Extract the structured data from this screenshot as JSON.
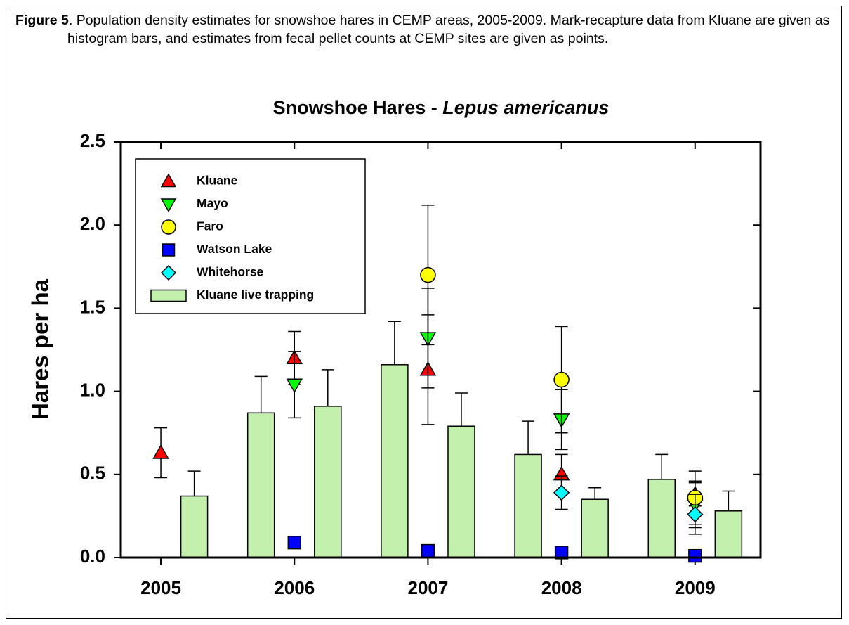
{
  "caption": {
    "label": "Figure 5",
    "text": ".  Population density estimates for snowshoe hares in CEMP areas, 2005-2009. Mark-recapture data from Kluane are given as histogram bars, and estimates from fecal pellet counts at CEMP sites are given as points."
  },
  "chart_data": {
    "type": "bar",
    "title": [
      "Snowshoe Hares - ",
      "Lepus americanus"
    ],
    "y_label": "Hares per ha",
    "xlim": [
      2004.7,
      2009.49
    ],
    "xticks": [
      2005,
      2006,
      2007,
      2008,
      2009
    ],
    "ylim": [
      0,
      2.5
    ],
    "yticks": [
      {
        "value": 0,
        "label": "0.0"
      },
      0.5,
      {
        "value": 1,
        "label": "1.0"
      },
      1.5,
      {
        "value": 2,
        "label": "2.0"
      },
      2.5
    ],
    "legend": "top-left",
    "series": [
      {
        "name": "Kluane",
        "type": "scatter",
        "marker": "triangle-up",
        "color": "#ff0000",
        "x": [
          2005,
          2006,
          2007,
          2008,
          2009
        ],
        "values": [
          0.63,
          1.2,
          1.13,
          0.5,
          0.38
        ],
        "errors": [
          0.15,
          0.16,
          0.33,
          0.12,
          0.07
        ]
      },
      {
        "name": "Mayo",
        "type": "scatter",
        "marker": "triangle-down",
        "color": "#00ff00",
        "x": [
          2006,
          2007,
          2008,
          2009
        ],
        "values": [
          1.04,
          1.32,
          0.83,
          0.32
        ],
        "errors": [
          0.2,
          0.3,
          0.18,
          0.14
        ]
      },
      {
        "name": "Faro",
        "type": "scatter",
        "marker": "circle",
        "color": "#ffff00",
        "x": [
          2007,
          2008,
          2009
        ],
        "values": [
          1.7,
          1.07,
          0.36
        ],
        "errors": [
          0.42,
          0.32,
          0.16
        ]
      },
      {
        "name": "Watson Lake",
        "type": "scatter",
        "marker": "square",
        "color": "#0000ff",
        "x": [
          2006,
          2007,
          2008,
          2009
        ],
        "values": [
          0.09,
          0.04,
          0.03,
          0.01
        ]
      },
      {
        "name": "Whitehorse",
        "type": "scatter",
        "marker": "diamond",
        "color": "#00ffff",
        "x": [
          2008,
          2009
        ],
        "values": [
          0.39,
          0.26
        ],
        "errors": [
          0.1,
          0.12
        ]
      },
      {
        "name": "Kluane live trapping",
        "type": "bar",
        "color": "#c4f0ae",
        "x": [
          2005.25,
          2005.75,
          2006.25,
          2006.75,
          2007.25,
          2007.75,
          2008.25,
          2008.75,
          2009.25
        ],
        "values": [
          0.37,
          0.87,
          0.91,
          1.16,
          0.79,
          0.62,
          0.35,
          0.47,
          0.28
        ],
        "errors": [
          0.15,
          0.22,
          0.22,
          0.26,
          0.2,
          0.2,
          0.07,
          0.15,
          0.12
        ]
      }
    ]
  }
}
